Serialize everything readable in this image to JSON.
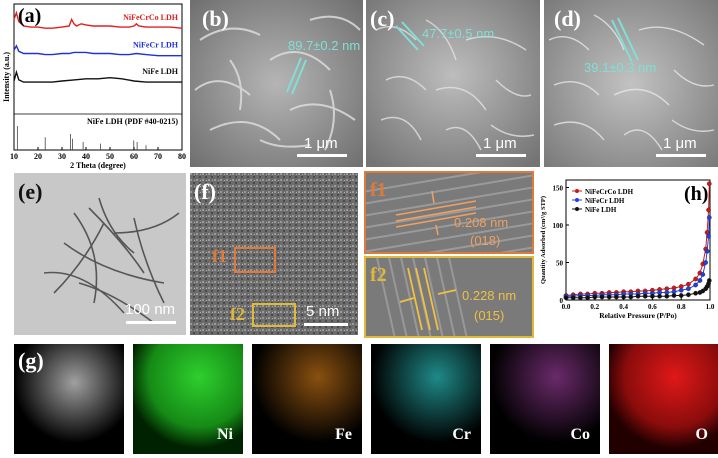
{
  "panels": {
    "a": {
      "label": "(a)",
      "xlabel": "2 Theta (degree)",
      "ylabel": "Intensity (a.u.)",
      "xticks": [
        "10",
        "20",
        "30",
        "40",
        "50",
        "60",
        "70",
        "80"
      ],
      "legend": [
        {
          "name": "NiFeCrCo LDH",
          "color": "#e02020"
        },
        {
          "name": "NiFeCr LDH",
          "color": "#2030e0"
        },
        {
          "name": "NiFe LDH",
          "color": "#111111"
        }
      ],
      "reference": "NiFe LDH (PDF #40-0215)"
    },
    "b": {
      "label": "(b)",
      "measure": "89.7±0.2 nm",
      "scalebar": "1 μm"
    },
    "c": {
      "label": "(c)",
      "measure": "47.7±0.5 nm",
      "scalebar": "1 μm"
    },
    "d": {
      "label": "(d)",
      "measure": "39.1±0.3 nm",
      "scalebar": "1 μm"
    },
    "e": {
      "label": "(e)",
      "scalebar": "100 nm"
    },
    "f": {
      "label": "(f)",
      "scalebar": "5 nm",
      "box1": "f1",
      "box2": "f2"
    },
    "f1": {
      "label": "f1",
      "spacing": "0.208 nm",
      "plane": "(018)"
    },
    "f2": {
      "label": "f2",
      "spacing": "0.228 nm",
      "plane": "(015)"
    },
    "h": {
      "label": "(h)",
      "xlabel": "Relative Pressure (P/Po)",
      "ylabel": "Quantity Adsorbed (cm³/g STP)",
      "legend": [
        {
          "name": "NiFeCrCo LDH",
          "color": "#d01818"
        },
        {
          "name": "NiFeCr LDH",
          "color": "#2040e0"
        },
        {
          "name": "NiFe LDH",
          "color": "#111111"
        }
      ]
    },
    "g": {
      "label": "(g)",
      "elements": [
        "Ni",
        "Fe",
        "Cr",
        "Co",
        "O"
      ]
    }
  },
  "chart_data": [
    {
      "type": "line",
      "panel": "a",
      "title": "",
      "xlabel": "2 Theta (degree)",
      "ylabel": "Intensity (a.u.)",
      "xlim": [
        10,
        80
      ],
      "grid": false,
      "legend_placement": "right of each curve",
      "series": [
        {
          "name": "NiFeCrCo LDH",
          "x": [
            10,
            11,
            12,
            14,
            17,
            20,
            23,
            26,
            30,
            33,
            34,
            35,
            36,
            38,
            40,
            43,
            46,
            50,
            54,
            58,
            60,
            61,
            62,
            65,
            70,
            75,
            80
          ],
          "y": [
            0.86,
            0.92,
            0.84,
            0.8,
            0.79,
            0.79,
            0.78,
            0.78,
            0.79,
            0.8,
            0.86,
            0.82,
            0.8,
            0.82,
            0.81,
            0.8,
            0.8,
            0.8,
            0.79,
            0.79,
            0.8,
            0.82,
            0.8,
            0.79,
            0.79,
            0.79,
            0.78
          ]
        },
        {
          "name": "NiFeCr LDH",
          "x": [
            10,
            11,
            12,
            14,
            17,
            20,
            23,
            26,
            30,
            33,
            35,
            38,
            40,
            43,
            46,
            50,
            54,
            58,
            61,
            65,
            70,
            75,
            80
          ],
          "y": [
            0.58,
            0.62,
            0.57,
            0.55,
            0.55,
            0.55,
            0.54,
            0.54,
            0.55,
            0.55,
            0.56,
            0.56,
            0.56,
            0.55,
            0.55,
            0.55,
            0.54,
            0.54,
            0.55,
            0.54,
            0.53,
            0.53,
            0.53
          ]
        },
        {
          "name": "NiFe LDH",
          "x": [
            10,
            11,
            12,
            14,
            17,
            20,
            23,
            26,
            30,
            35,
            40,
            45,
            50,
            55,
            60,
            65,
            70,
            75,
            80
          ],
          "y": [
            0.3,
            0.38,
            0.31,
            0.29,
            0.29,
            0.29,
            0.29,
            0.29,
            0.3,
            0.31,
            0.32,
            0.32,
            0.33,
            0.32,
            0.3,
            0.29,
            0.29,
            0.29,
            0.29
          ]
        }
      ],
      "reference_peaks": {
        "name": "NiFe LDH (PDF #40-0215)",
        "x": [
          11.4,
          23.0,
          33.5,
          34.4,
          38.8,
          46.0,
          59.9,
          61.3,
          65.0
        ],
        "y": [
          0.15,
          0.08,
          0.1,
          0.07,
          0.05,
          0.04,
          0.06,
          0.05,
          0.03
        ]
      }
    },
    {
      "type": "line",
      "panel": "h",
      "title": "",
      "xlabel": "Relative Pressure (P/Po)",
      "ylabel": "Quantity Adsorbed (cm³/g STP)",
      "xlim": [
        0.0,
        1.0
      ],
      "ylim": [
        0,
        160
      ],
      "xticks": [
        0.0,
        0.2,
        0.4,
        0.6,
        0.8,
        1.0
      ],
      "yticks": [
        0,
        50,
        100,
        150
      ],
      "grid": false,
      "legend_placement": "top-left",
      "series": [
        {
          "name": "NiFeCrCo LDH",
          "x": [
            0.0,
            0.05,
            0.1,
            0.15,
            0.2,
            0.25,
            0.3,
            0.35,
            0.4,
            0.45,
            0.5,
            0.55,
            0.6,
            0.65,
            0.7,
            0.75,
            0.8,
            0.85,
            0.9,
            0.93,
            0.95,
            0.97,
            0.98,
            0.99,
            0.995
          ],
          "y": [
            6,
            7,
            8,
            8,
            9,
            9,
            10,
            10,
            11,
            11,
            12,
            12,
            13,
            14,
            15,
            16,
            18,
            21,
            28,
            36,
            48,
            68,
            90,
            120,
            155
          ]
        },
        {
          "name": "NiFeCr LDH",
          "x": [
            0.0,
            0.05,
            0.1,
            0.15,
            0.2,
            0.25,
            0.3,
            0.35,
            0.4,
            0.45,
            0.5,
            0.55,
            0.6,
            0.65,
            0.7,
            0.75,
            0.8,
            0.85,
            0.9,
            0.93,
            0.95,
            0.97,
            0.98,
            0.99,
            0.995
          ],
          "y": [
            5,
            5,
            6,
            6,
            6,
            7,
            7,
            7,
            8,
            8,
            8,
            9,
            9,
            10,
            10,
            11,
            13,
            15,
            20,
            26,
            34,
            50,
            65,
            85,
            110
          ]
        },
        {
          "name": "NiFe LDH",
          "x": [
            0.0,
            0.05,
            0.1,
            0.15,
            0.2,
            0.25,
            0.3,
            0.35,
            0.4,
            0.45,
            0.5,
            0.55,
            0.6,
            0.65,
            0.7,
            0.75,
            0.8,
            0.85,
            0.9,
            0.93,
            0.95,
            0.97,
            0.98,
            0.99,
            0.995
          ],
          "y": [
            3,
            3,
            3,
            3,
            4,
            4,
            4,
            4,
            4,
            4,
            5,
            5,
            5,
            5,
            5,
            6,
            6,
            7,
            9,
            10,
            12,
            15,
            18,
            22,
            26
          ]
        }
      ]
    }
  ]
}
